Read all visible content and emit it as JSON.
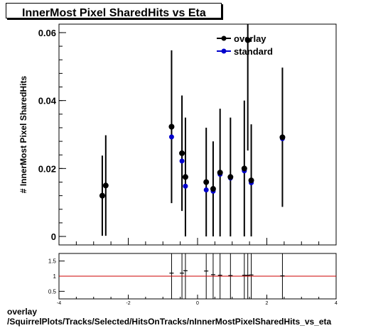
{
  "title": "InnerMost Pixel SharedHits vs Eta",
  "caption": {
    "line1": "overlay",
    "line2": "/SquirrelPlots/Tracks/Selected/HitsOnTracks/nInnerMostPixelSharedHits_vs_eta"
  },
  "chart_data": [
    {
      "type": "scatter",
      "panel": "main",
      "title": "InnerMost Pixel SharedHits vs Eta",
      "xlabel": "",
      "ylabel": "# InnerMost Pixel SharedHits",
      "xlim": [
        -4,
        4
      ],
      "ylim": [
        -0.0025,
        0.0625
      ],
      "y_ticks": [
        0,
        0.02,
        0.04,
        0.06
      ],
      "y_tick_labels": [
        "0",
        "0.02",
        "0.04",
        "0.06"
      ],
      "legend": {
        "position": "top-right",
        "entries": [
          "overlay",
          "standard"
        ]
      },
      "colors": {
        "overlay": "#000000",
        "standard": "#0000cc"
      },
      "series": [
        {
          "name": "overlay",
          "points": [
            {
              "x": -2.75,
              "y": 0.012,
              "err": 0.0118
            },
            {
              "x": -2.65,
              "y": 0.015,
              "err": 0.0148
            },
            {
              "x": -0.75,
              "y": 0.0323,
              "err": 0.0225
            },
            {
              "x": -0.45,
              "y": 0.0245,
              "err": 0.017
            },
            {
              "x": -0.35,
              "y": 0.0175,
              "err": 0.0175
            },
            {
              "x": 0.25,
              "y": 0.016,
              "err": 0.016
            },
            {
              "x": 0.45,
              "y": 0.014,
              "err": 0.014
            },
            {
              "x": 0.65,
              "y": 0.0188,
              "err": 0.0188
            },
            {
              "x": 0.95,
              "y": 0.0175,
              "err": 0.0175
            },
            {
              "x": 1.35,
              "y": 0.02,
              "err": 0.02
            },
            {
              "x": 1.45,
              "y": 0.0578,
              "err": 0.0325
            },
            {
              "x": 1.55,
              "y": 0.0165,
              "err": 0.0165
            },
            {
              "x": 2.45,
              "y": 0.0292,
              "err": 0.0205
            }
          ]
        },
        {
          "name": "standard",
          "points": [
            {
              "x": -0.75,
              "y": 0.0293
            },
            {
              "x": -0.45,
              "y": 0.0222
            },
            {
              "x": -0.35,
              "y": 0.0148
            },
            {
              "x": 0.25,
              "y": 0.0137
            },
            {
              "x": 0.45,
              "y": 0.0133
            },
            {
              "x": 0.65,
              "y": 0.0183
            },
            {
              "x": 0.95,
              "y": 0.0172
            },
            {
              "x": 1.35,
              "y": 0.0193
            },
            {
              "x": 1.55,
              "y": 0.0158
            },
            {
              "x": 2.45,
              "y": 0.0288
            }
          ]
        }
      ]
    },
    {
      "type": "scatter",
      "panel": "ratio",
      "xlim": [
        -4,
        4
      ],
      "ylim": [
        0.25,
        1.75
      ],
      "x_ticks": [
        -4,
        -2,
        0,
        2,
        4
      ],
      "x_tick_labels": [
        "-4",
        "-2",
        "0",
        "2",
        "4"
      ],
      "y_ticks": [
        0.5,
        1,
        1.5
      ],
      "y_tick_labels": [
        "0.5",
        "1",
        "1.5"
      ],
      "reference_line": 1,
      "colors": {
        "reference": "#cc0000"
      },
      "points": [
        {
          "x": -0.75,
          "y": 1.1
        },
        {
          "x": -0.45,
          "y": 1.1
        },
        {
          "x": -0.35,
          "y": 1.18
        },
        {
          "x": 0.25,
          "y": 1.17
        },
        {
          "x": 0.45,
          "y": 1.05
        },
        {
          "x": 0.65,
          "y": 1.03
        },
        {
          "x": 0.95,
          "y": 1.02
        },
        {
          "x": 1.35,
          "y": 1.03
        },
        {
          "x": 1.45,
          "y": 1.03
        },
        {
          "x": 1.55,
          "y": 1.04
        },
        {
          "x": 2.45,
          "y": 1.01
        }
      ]
    }
  ]
}
